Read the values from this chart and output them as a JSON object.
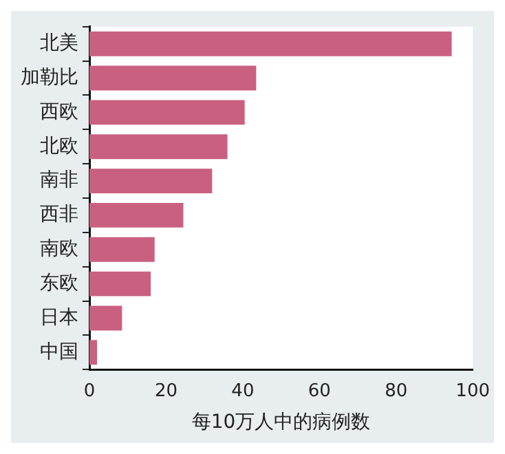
{
  "chart_data": {
    "type": "bar",
    "orientation": "horizontal",
    "xlabel": "每10万人中的病例数",
    "categories": [
      "北美",
      "加勒比",
      "西欧",
      "北欧",
      "南非",
      "西非",
      "南欧",
      "东欧",
      "日本",
      "中国"
    ],
    "values": [
      94.5,
      43.5,
      40.5,
      36,
      32,
      24.5,
      17,
      16,
      8.5,
      2
    ],
    "color": "#c9607f",
    "xlim": [
      0,
      100
    ],
    "xticks": [
      0,
      20,
      40,
      60,
      80,
      100
    ],
    "grid": false,
    "legend": false
  }
}
